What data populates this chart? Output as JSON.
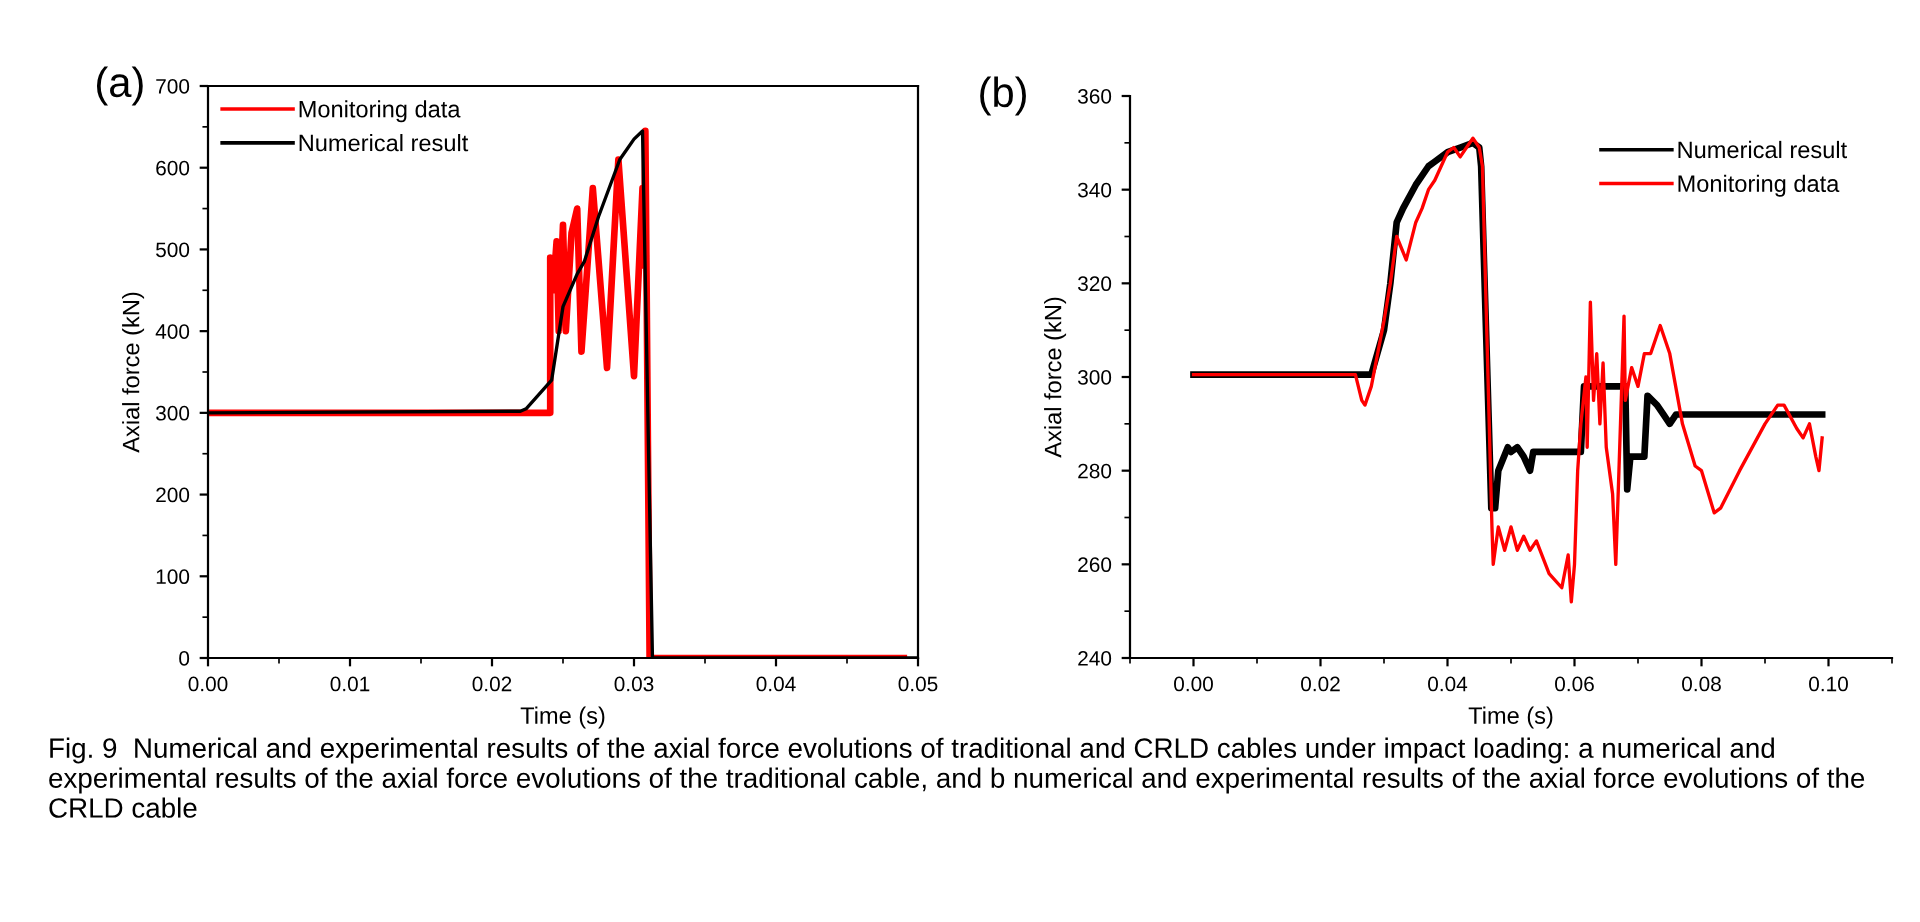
{
  "chart_data": [
    {
      "type": "line",
      "title": "(a)",
      "xlabel": "Time (s)",
      "ylabel": "Axial force (kN)",
      "xlim": [
        0,
        0.05
      ],
      "xticks": [
        {
          "value": 0,
          "label": "0.00"
        },
        {
          "value": 0.01,
          "label": "0.01"
        },
        {
          "value": 0.02,
          "label": "0.02"
        },
        {
          "value": 0.03,
          "label": "0.03"
        },
        {
          "value": 0.04,
          "label": "0.04"
        },
        {
          "value": 0.05,
          "label": "0.05"
        }
      ],
      "ylim": [
        0,
        700
      ],
      "yticks": [
        0,
        100,
        200,
        300,
        400,
        500,
        600,
        700
      ],
      "legend": "top left",
      "grid": false,
      "line_style": "solid",
      "marker": "none",
      "annotations": [
        "Fig. 9  Numerical and experimental results of the axial force evolutions of traditional and CRLD cables under impact loading: a numerical and experimental results of the axial force evolutions of the traditional cable, and b numerical and experimental results of the axial force evolutions of the CRLD cable"
      ],
      "series": [
        {
          "name": "Monitoring data",
          "color": "#ff0000",
          "x": [
            0,
            0.0241,
            0.0241,
            0.0243,
            0.02455,
            0.0247,
            0.025,
            0.0252,
            0.0256,
            0.026,
            0.0263,
            0.0271,
            0.0281,
            0.0289,
            0.03,
            0.0306,
            0.0307,
            0.0308,
            0.0311,
            0.049
          ],
          "values": [
            300,
            300,
            490,
            450,
            510,
            400,
            530,
            400,
            520,
            550,
            375,
            575,
            355,
            610,
            345,
            575,
            480,
            645,
            0,
            0
          ]
        },
        {
          "name": "Numerical result",
          "color": "#000000",
          "x": [
            0,
            0.022,
            0.0224,
            0.0242,
            0.025,
            0.026,
            0.0265,
            0.0275,
            0.029,
            0.03,
            0.0306,
            0.0313,
            0.05
          ],
          "values": [
            300,
            302,
            305,
            340,
            430,
            470,
            485,
            540,
            610,
            635,
            645,
            0,
            0
          ]
        }
      ]
    },
    {
      "type": "line",
      "title": "(b)",
      "xlabel": "Time (s)",
      "ylabel": "Axial force (kN)",
      "xlim": [
        -0.01,
        0.11
      ],
      "xticks": [
        {
          "value": 0,
          "label": "0.00"
        },
        {
          "value": 0.02,
          "label": "0.02"
        },
        {
          "value": 0.04,
          "label": "0.04"
        },
        {
          "value": 0.06,
          "label": "0.06"
        },
        {
          "value": 0.08,
          "label": "0.08"
        },
        {
          "value": 0.1,
          "label": "0.10"
        }
      ],
      "ylim": [
        240,
        360
      ],
      "yticks": [
        240,
        260,
        280,
        300,
        320,
        340,
        360
      ],
      "legend": "top right",
      "grid": false,
      "line_style": "solid",
      "marker": "none",
      "series": [
        {
          "name": "Numerical result",
          "color": "#000000",
          "x": [
            0,
            0.028,
            0.03,
            0.031,
            0.032,
            0.033,
            0.035,
            0.037,
            0.038,
            0.04,
            0.042,
            0.044,
            0.045,
            0.0453,
            0.0469,
            0.0475,
            0.048,
            0.0495,
            0.05,
            0.051,
            0.052,
            0.053,
            0.0535,
            0.061,
            0.0615,
            0.068,
            0.0683,
            0.0688,
            0.071,
            0.0715,
            0.073,
            0.074,
            0.075,
            0.076,
            0.099
          ],
          "values": [
            300.5,
            300.5,
            310,
            320,
            333,
            336,
            341,
            345,
            346,
            348,
            349,
            350,
            349,
            345,
            272,
            272,
            280,
            285,
            284,
            285,
            283,
            280,
            284,
            284,
            298,
            298,
            276,
            283,
            283,
            296,
            294,
            292,
            290,
            292,
            292
          ]
        },
        {
          "name": "Monitoring data",
          "color": "#ff0000",
          "x": [
            0,
            0.0255,
            0.0265,
            0.027,
            0.028,
            0.03,
            0.031,
            0.032,
            0.0335,
            0.035,
            0.036,
            0.037,
            0.038,
            0.04,
            0.041,
            0.042,
            0.043,
            0.044,
            0.045,
            0.0455,
            0.047,
            0.0472,
            0.048,
            0.049,
            0.05,
            0.051,
            0.052,
            0.053,
            0.054,
            0.056,
            0.058,
            0.059,
            0.0595,
            0.06,
            0.0605,
            0.061,
            0.0618,
            0.062,
            0.0625,
            0.063,
            0.0635,
            0.064,
            0.0645,
            0.065,
            0.066,
            0.0665,
            0.067,
            0.0678,
            0.068,
            0.069,
            0.07,
            0.071,
            0.072,
            0.0735,
            0.075,
            0.077,
            0.079,
            0.08,
            0.082,
            0.083,
            0.086,
            0.09,
            0.092,
            0.093,
            0.095,
            0.096,
            0.097,
            0.098,
            0.0985,
            0.099
          ],
          "values": [
            300.5,
            300.5,
            295,
            294,
            298,
            312,
            320,
            330,
            325,
            333,
            336,
            340,
            342,
            348,
            349,
            347,
            349,
            351,
            349,
            345,
            268,
            260,
            268,
            263,
            268,
            263,
            266,
            263,
            265,
            258,
            255,
            262,
            252,
            260,
            280,
            290,
            300,
            285,
            316,
            295,
            305,
            290,
            303,
            285,
            275,
            260,
            280,
            313,
            295,
            302,
            298,
            305,
            305,
            311,
            305,
            290,
            281,
            280,
            271,
            272,
            280,
            290,
            294,
            294,
            289,
            287,
            290,
            283,
            280,
            287
          ]
        }
      ]
    }
  ]
}
